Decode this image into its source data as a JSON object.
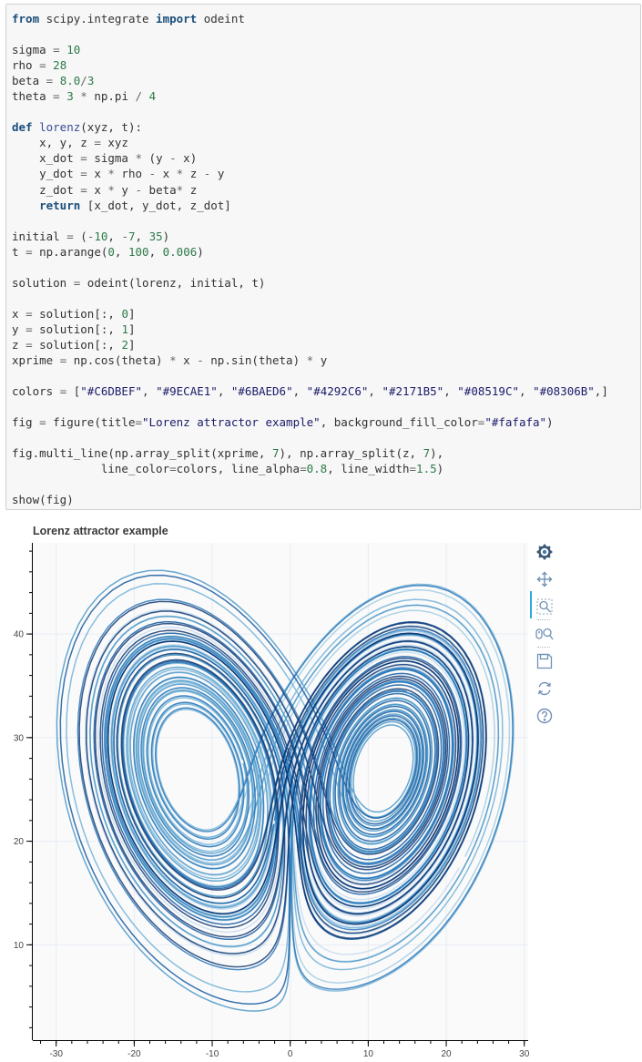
{
  "code_cell": {
    "lines": [
      [
        [
          "kw",
          "from"
        ],
        [
          "t",
          " scipy.integrate "
        ],
        [
          "kw",
          "import"
        ],
        [
          "t",
          " odeint"
        ]
      ],
      [],
      [
        [
          "t",
          "sigma "
        ],
        [
          "op",
          "="
        ],
        [
          "t",
          " "
        ],
        [
          "num",
          "10"
        ]
      ],
      [
        [
          "t",
          "rho "
        ],
        [
          "op",
          "="
        ],
        [
          "t",
          " "
        ],
        [
          "num",
          "28"
        ]
      ],
      [
        [
          "t",
          "beta "
        ],
        [
          "op",
          "="
        ],
        [
          "t",
          " "
        ],
        [
          "num",
          "8.0"
        ],
        [
          "op",
          "/"
        ],
        [
          "num",
          "3"
        ]
      ],
      [
        [
          "t",
          "theta "
        ],
        [
          "op",
          "="
        ],
        [
          "t",
          " "
        ],
        [
          "num",
          "3"
        ],
        [
          "t",
          " "
        ],
        [
          "op",
          "*"
        ],
        [
          "t",
          " np.pi "
        ],
        [
          "op",
          "/"
        ],
        [
          "t",
          " "
        ],
        [
          "num",
          "4"
        ]
      ],
      [],
      [
        [
          "kw",
          "def"
        ],
        [
          "t",
          " "
        ],
        [
          "fn",
          "lorenz"
        ],
        [
          "t",
          "(xyz, t):"
        ]
      ],
      [
        [
          "t",
          "    x, y, z "
        ],
        [
          "op",
          "="
        ],
        [
          "t",
          " xyz"
        ]
      ],
      [
        [
          "t",
          "    x_dot "
        ],
        [
          "op",
          "="
        ],
        [
          "t",
          " sigma "
        ],
        [
          "op",
          "*"
        ],
        [
          "t",
          " (y "
        ],
        [
          "op",
          "-"
        ],
        [
          "t",
          " x)"
        ]
      ],
      [
        [
          "t",
          "    y_dot "
        ],
        [
          "op",
          "="
        ],
        [
          "t",
          " x "
        ],
        [
          "op",
          "*"
        ],
        [
          "t",
          " rho "
        ],
        [
          "op",
          "-"
        ],
        [
          "t",
          " x "
        ],
        [
          "op",
          "*"
        ],
        [
          "t",
          " z "
        ],
        [
          "op",
          "-"
        ],
        [
          "t",
          " y"
        ]
      ],
      [
        [
          "t",
          "    z_dot "
        ],
        [
          "op",
          "="
        ],
        [
          "t",
          " x "
        ],
        [
          "op",
          "*"
        ],
        [
          "t",
          " y "
        ],
        [
          "op",
          "-"
        ],
        [
          "t",
          " beta"
        ],
        [
          "op",
          "*"
        ],
        [
          "t",
          " z"
        ]
      ],
      [
        [
          "t",
          "    "
        ],
        [
          "kw",
          "return"
        ],
        [
          "t",
          " [x_dot, y_dot, z_dot]"
        ]
      ],
      [],
      [
        [
          "t",
          "initial "
        ],
        [
          "op",
          "="
        ],
        [
          "t",
          " ("
        ],
        [
          "op",
          "-"
        ],
        [
          "num",
          "10"
        ],
        [
          "t",
          ", "
        ],
        [
          "op",
          "-"
        ],
        [
          "num",
          "7"
        ],
        [
          "t",
          ", "
        ],
        [
          "num",
          "35"
        ],
        [
          "t",
          ")"
        ]
      ],
      [
        [
          "t",
          "t "
        ],
        [
          "op",
          "="
        ],
        [
          "t",
          " np.arange("
        ],
        [
          "num",
          "0"
        ],
        [
          "t",
          ", "
        ],
        [
          "num",
          "100"
        ],
        [
          "t",
          ", "
        ],
        [
          "num",
          "0.006"
        ],
        [
          "t",
          ")"
        ]
      ],
      [],
      [
        [
          "t",
          "solution "
        ],
        [
          "op",
          "="
        ],
        [
          "t",
          " odeint(lorenz, initial, t)"
        ]
      ],
      [],
      [
        [
          "t",
          "x "
        ],
        [
          "op",
          "="
        ],
        [
          "t",
          " solution[:, "
        ],
        [
          "num",
          "0"
        ],
        [
          "t",
          "]"
        ]
      ],
      [
        [
          "t",
          "y "
        ],
        [
          "op",
          "="
        ],
        [
          "t",
          " solution[:, "
        ],
        [
          "num",
          "1"
        ],
        [
          "t",
          "]"
        ]
      ],
      [
        [
          "t",
          "z "
        ],
        [
          "op",
          "="
        ],
        [
          "t",
          " solution[:, "
        ],
        [
          "num",
          "2"
        ],
        [
          "t",
          "]"
        ]
      ],
      [
        [
          "t",
          "xprime "
        ],
        [
          "op",
          "="
        ],
        [
          "t",
          " np.cos(theta) "
        ],
        [
          "op",
          "*"
        ],
        [
          "t",
          " x "
        ],
        [
          "op",
          "-"
        ],
        [
          "t",
          " np.sin(theta) "
        ],
        [
          "op",
          "*"
        ],
        [
          "t",
          " y"
        ]
      ],
      [],
      [
        [
          "t",
          "colors "
        ],
        [
          "op",
          "="
        ],
        [
          "t",
          " ["
        ],
        [
          "str",
          "\"#C6DBEF\""
        ],
        [
          "t",
          ", "
        ],
        [
          "str",
          "\"#9ECAE1\""
        ],
        [
          "t",
          ", "
        ],
        [
          "str",
          "\"#6BAED6\""
        ],
        [
          "t",
          ", "
        ],
        [
          "str",
          "\"#4292C6\""
        ],
        [
          "t",
          ", "
        ],
        [
          "str",
          "\"#2171B5\""
        ],
        [
          "t",
          ", "
        ],
        [
          "str",
          "\"#08519C\""
        ],
        [
          "t",
          ", "
        ],
        [
          "str",
          "\"#08306B\""
        ],
        [
          "t",
          ",]"
        ]
      ],
      [],
      [
        [
          "t",
          "fig "
        ],
        [
          "op",
          "="
        ],
        [
          "t",
          " figure(title"
        ],
        [
          "op",
          "="
        ],
        [
          "str",
          "\"Lorenz attractor example\""
        ],
        [
          "t",
          ", background_fill_color"
        ],
        [
          "op",
          "="
        ],
        [
          "str",
          "\"#fafafa\""
        ],
        [
          "t",
          ")"
        ]
      ],
      [],
      [
        [
          "t",
          "fig.multi_line(np.array_split(xprime, "
        ],
        [
          "num",
          "7"
        ],
        [
          "t",
          "), np.array_split(z, "
        ],
        [
          "num",
          "7"
        ],
        [
          "t",
          "),"
        ]
      ],
      [
        [
          "t",
          "             line_color"
        ],
        [
          "op",
          "="
        ],
        [
          "t",
          "colors, line_alpha"
        ],
        [
          "op",
          "="
        ],
        [
          "num",
          "0.8"
        ],
        [
          "t",
          ", line_width"
        ],
        [
          "op",
          "="
        ],
        [
          "num",
          "1.5"
        ],
        [
          "t",
          ")"
        ]
      ],
      [],
      [
        [
          "t",
          "show(fig)"
        ]
      ]
    ]
  },
  "plot": {
    "title": "Lorenz attractor example",
    "background_fill_color": "#fafafa",
    "line_colors": [
      "#C6DBEF",
      "#9ECAE1",
      "#6BAED6",
      "#4292C6",
      "#2171B5",
      "#08519C",
      "#08306B"
    ],
    "line_alpha": 0.8,
    "line_width": 1.5
  },
  "chart_data": {
    "type": "line",
    "title": "Lorenz attractor example",
    "xlabel": "",
    "ylabel": "",
    "xlim": [
      -33,
      30.5
    ],
    "ylim": [
      0.8,
      48.8
    ],
    "x_ticks": [
      -30,
      -20,
      -10,
      0,
      10,
      20,
      30
    ],
    "y_ticks": [
      10,
      20,
      30,
      40
    ],
    "grid": true,
    "legend": "none",
    "series_generator": {
      "sigma": 10,
      "rho": 28,
      "beta": 2.6666667,
      "theta": 2.3561945,
      "initial": [
        -10,
        -7,
        35
      ],
      "t_start": 0,
      "t_end": 100,
      "dt": 0.006,
      "segments": 7
    }
  },
  "toolbar": {
    "tools": [
      {
        "name": "bokeh-logo-icon",
        "interactable": true
      },
      {
        "name": "pan-icon",
        "interactable": true
      },
      {
        "name": "box-zoom-icon",
        "interactable": true
      },
      {
        "name": "wheel-zoom-icon",
        "interactable": true
      },
      {
        "name": "save-icon",
        "interactable": true
      },
      {
        "name": "reset-icon",
        "interactable": true
      },
      {
        "name": "help-icon",
        "interactable": true
      }
    ]
  }
}
